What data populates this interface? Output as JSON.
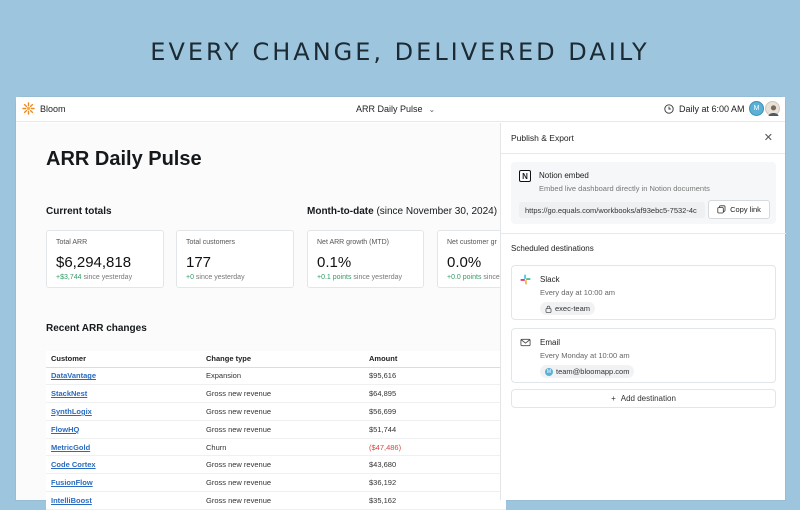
{
  "headline": "EVERY CHANGE, DELIVERED DAILY",
  "app": {
    "name": "Bloom",
    "logo_icon": "sun-flower-icon",
    "brand_color": "#f08a24"
  },
  "header": {
    "doc_title": "ARR Daily Pulse",
    "schedule": "Daily at 6:00 AM",
    "avatar_initial": "M"
  },
  "main": {
    "title": "ARR Daily Pulse",
    "current_totals_label": "Current totals",
    "mtd_label": "Month-to-date",
    "mtd_since": "(since November 30, 2024)",
    "cards": [
      {
        "label": "Total ARR",
        "value": "$6,294,818",
        "delta": "+$3,744",
        "delta_suffix": " since yesterday"
      },
      {
        "label": "Total customers",
        "value": "177",
        "delta": "+0",
        "delta_suffix": " since yesterday"
      },
      {
        "label": "Net ARR growth (MTD)",
        "value": "0.1%",
        "delta": "+0.1 points",
        "delta_suffix": " since yesterday"
      },
      {
        "label": "Net customer gr",
        "value": "0.0%",
        "delta": "+0.0 points",
        "delta_suffix": " since"
      }
    ],
    "recent_label": "Recent ARR changes",
    "table": {
      "headers": [
        "Customer",
        "Change type",
        "Amount"
      ],
      "rows": [
        {
          "customer": "DataVantage",
          "type": "Expansion",
          "amount": "$95,616",
          "negative": false
        },
        {
          "customer": "StackNest",
          "type": "Gross new revenue",
          "amount": "$64,895",
          "negative": false
        },
        {
          "customer": "SynthLogix",
          "type": "Gross new revenue",
          "amount": "$56,699",
          "negative": false
        },
        {
          "customer": "FlowHQ",
          "type": "Gross new revenue",
          "amount": "$51,744",
          "negative": false
        },
        {
          "customer": "MetricGold",
          "type": "Churn",
          "amount": "($47,486)",
          "negative": true
        },
        {
          "customer": "Code Cortex",
          "type": "Gross new revenue",
          "amount": "$43,680",
          "negative": false
        },
        {
          "customer": "FusionFlow",
          "type": "Gross new revenue",
          "amount": "$36,192",
          "negative": false
        },
        {
          "customer": "IntelliBoost",
          "type": "Gross new revenue",
          "amount": "$35,162",
          "negative": false
        }
      ]
    }
  },
  "panel": {
    "title": "Publish & Export",
    "notion": {
      "title": "Notion embed",
      "description": "Embed live dashboard directly in Notion documents",
      "url": "https://go.equals.com/workbooks/af93ebc5-7532-4c",
      "copy_label": "Copy link"
    },
    "scheduled_label": "Scheduled destinations",
    "destinations": [
      {
        "name": "Slack",
        "schedule": "Every day at 10:00 am",
        "target": "exec-team",
        "icon": "slack-icon"
      },
      {
        "name": "Email",
        "schedule": "Every Monday at 10:00 am",
        "target": "team@bloomapp.com",
        "icon": "mail-icon"
      }
    ],
    "add_label": "Add destination"
  }
}
